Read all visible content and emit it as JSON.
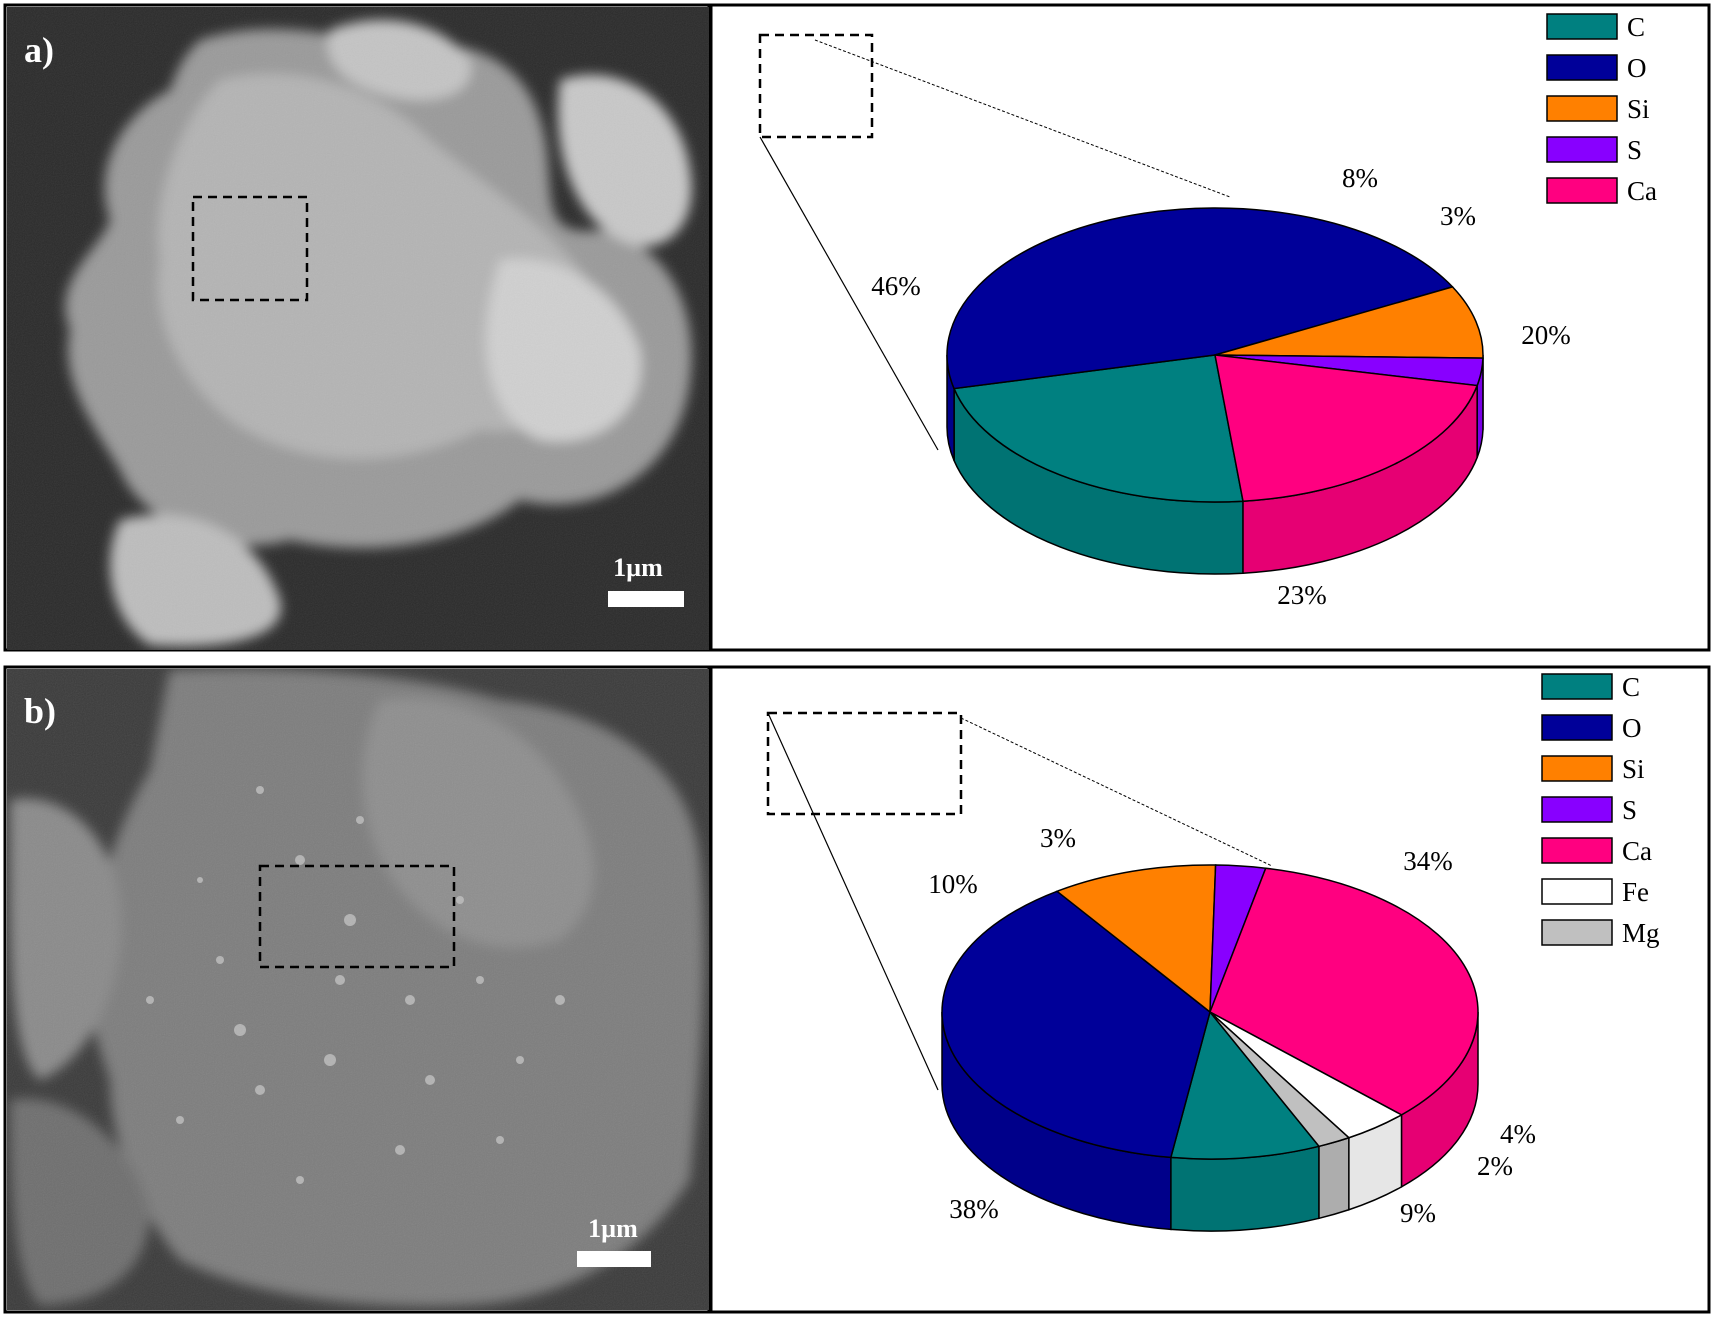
{
  "panels": [
    {
      "label": "a)",
      "scale_bar_label": "1µm",
      "chart_data": {
        "type": "pie",
        "labels": [
          "C",
          "O",
          "Si",
          "S",
          "Ca"
        ],
        "values": [
          23,
          46,
          8,
          3,
          20
        ],
        "value_labels": [
          "23%",
          "46%",
          "8%",
          "3%",
          "20%"
        ],
        "colors": [
          "#008080",
          "#000099",
          "#ff8000",
          "#8800ff",
          "#ff0080"
        ],
        "legend": [
          "C",
          "O",
          "Si",
          "S",
          "Ca"
        ],
        "legend_position": "top-right",
        "style": "3d"
      }
    },
    {
      "label": "b)",
      "scale_bar_label": "1µm",
      "chart_data": {
        "type": "pie",
        "labels": [
          "C",
          "O",
          "Si",
          "S",
          "Ca",
          "Fe",
          "Mg"
        ],
        "values": [
          9,
          38,
          10,
          3,
          34,
          4,
          2
        ],
        "value_labels": [
          "9%",
          "38%",
          "10%",
          "3%",
          "34%",
          "4%",
          "2%"
        ],
        "colors": [
          "#008080",
          "#000099",
          "#ff8000",
          "#8800ff",
          "#ff0080",
          "#ffffff",
          "#c0c0c0"
        ],
        "legend": [
          "C",
          "O",
          "Si",
          "S",
          "Ca",
          "Fe",
          "Mg"
        ],
        "legend_position": "top-right",
        "style": "3d"
      }
    }
  ]
}
